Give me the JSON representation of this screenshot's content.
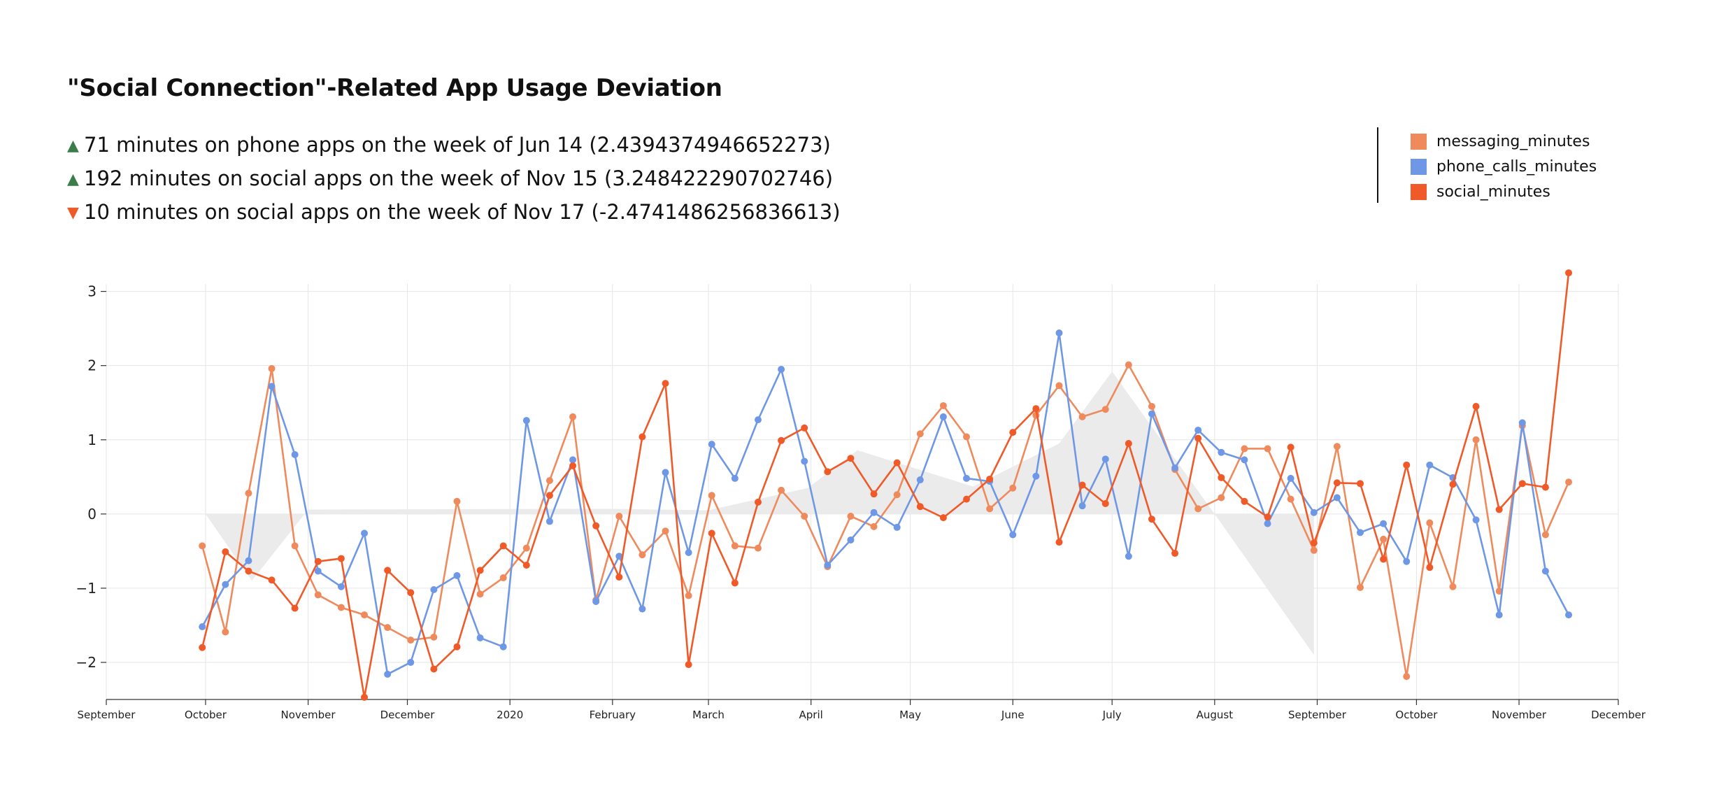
{
  "title": "\"Social Connection\"-Related App Usage Deviation",
  "annotations": [
    {
      "direction": "up",
      "color": "#3a7d4a",
      "text": "71 minutes on phone apps on the week of Jun 14 (2.4394374946652273)"
    },
    {
      "direction": "up",
      "color": "#3a7d4a",
      "text": "192 minutes on social apps on the week of Nov 15 (3.248422290702746)"
    },
    {
      "direction": "down",
      "color": "#f05a28",
      "text": "10 minutes on social apps on the week of Nov 17 (-2.4741486256836613)"
    }
  ],
  "chart_data": {
    "type": "line",
    "title": "\"Social Connection\"-Related App Usage Deviation",
    "xlabel": "",
    "ylabel": "",
    "ylim": [
      -2.5,
      3.1
    ],
    "yticks": [
      -2,
      -1,
      0,
      1,
      2,
      3
    ],
    "ytick_labels": [
      "−2",
      "−1",
      "0",
      "1",
      "2",
      "3"
    ],
    "xlim": [
      "2019-09-01",
      "2020-12-01"
    ],
    "xticks": [
      "2019-09-01",
      "2019-10-01",
      "2019-11-01",
      "2019-12-01",
      "2020-01-01",
      "2020-02-01",
      "2020-03-01",
      "2020-04-01",
      "2020-05-01",
      "2020-06-01",
      "2020-07-01",
      "2020-08-01",
      "2020-09-01",
      "2020-10-01",
      "2020-11-01",
      "2020-12-01"
    ],
    "xtick_labels": [
      "September",
      "October",
      "November",
      "December",
      "2020",
      "February",
      "March",
      "April",
      "May",
      "June",
      "July",
      "August",
      "September",
      "October",
      "November",
      "December"
    ],
    "grid": true,
    "legend_position": "top-right",
    "x": [
      "2019-09-30",
      "2019-10-07",
      "2019-10-14",
      "2019-10-21",
      "2019-10-28",
      "2019-11-04",
      "2019-11-11",
      "2019-11-18",
      "2019-11-25",
      "2019-12-02",
      "2019-12-09",
      "2019-12-16",
      "2019-12-23",
      "2019-12-30",
      "2020-01-06",
      "2020-01-13",
      "2020-01-20",
      "2020-01-27",
      "2020-02-03",
      "2020-02-10",
      "2020-02-17",
      "2020-02-24",
      "2020-03-02",
      "2020-03-09",
      "2020-03-16",
      "2020-03-23",
      "2020-03-30",
      "2020-04-06",
      "2020-04-13",
      "2020-04-20",
      "2020-04-27",
      "2020-05-04",
      "2020-05-11",
      "2020-05-18",
      "2020-05-25",
      "2020-06-01",
      "2020-06-08",
      "2020-06-15",
      "2020-06-22",
      "2020-06-29",
      "2020-07-06",
      "2020-07-13",
      "2020-07-20",
      "2020-07-27",
      "2020-08-03",
      "2020-08-10",
      "2020-08-17",
      "2020-08-24",
      "2020-08-31",
      "2020-09-07",
      "2020-09-14",
      "2020-09-21",
      "2020-09-28",
      "2020-10-05",
      "2020-10-12",
      "2020-10-19",
      "2020-10-26",
      "2020-11-02",
      "2020-11-09",
      "2020-11-16"
    ],
    "series": [
      {
        "name": "messaging_minutes",
        "color": "#ef8a5d",
        "values": [
          -0.43,
          -1.59,
          0.28,
          1.96,
          -0.43,
          -1.09,
          -1.26,
          -1.36,
          -1.53,
          -1.7,
          -1.66,
          0.17,
          -1.08,
          -0.86,
          -0.46,
          0.45,
          1.31,
          -1.16,
          -0.03,
          -0.55,
          -0.23,
          -1.1,
          0.25,
          -0.43,
          -0.46,
          0.32,
          -0.03,
          -0.71,
          -0.03,
          -0.17,
          0.26,
          1.08,
          1.46,
          1.04,
          0.07,
          0.35,
          1.33,
          1.73,
          1.31,
          1.41,
          2.01,
          1.45,
          0.6,
          0.07,
          0.22,
          0.88,
          0.88,
          0.2,
          -0.49,
          0.91,
          -0.99,
          -0.34,
          -2.19,
          -0.12,
          -0.98,
          1.0,
          -1.04,
          1.19,
          -0.28,
          0.43
        ]
      },
      {
        "name": "phone_calls_minutes",
        "color": "#6e98e6",
        "values": [
          -1.52,
          -0.95,
          -0.63,
          1.72,
          0.8,
          -0.77,
          -0.98,
          -0.26,
          -2.16,
          -2.0,
          -1.02,
          -0.83,
          -1.67,
          -1.79,
          1.26,
          -0.1,
          0.73,
          -1.18,
          -0.57,
          -1.28,
          0.56,
          -0.52,
          0.94,
          0.48,
          1.27,
          1.95,
          0.71,
          -0.69,
          -0.35,
          0.02,
          -0.18,
          0.46,
          1.31,
          0.48,
          0.44,
          -0.28,
          0.51,
          2.44,
          0.11,
          0.74,
          -0.57,
          1.35,
          0.62,
          1.13,
          0.83,
          0.73,
          -0.13,
          0.48,
          0.02,
          0.22,
          -0.25,
          -0.13,
          -0.64,
          0.66,
          0.49,
          -0.08,
          -1.36,
          1.23,
          -0.77,
          -1.36
        ]
      },
      {
        "name": "social_minutes",
        "color": "#f05a28",
        "values": [
          -1.8,
          -0.51,
          -0.77,
          -0.89,
          -1.27,
          -0.64,
          -0.6,
          -2.47,
          -0.76,
          -1.06,
          -2.09,
          -1.79,
          -0.76,
          -0.43,
          -0.69,
          0.25,
          0.65,
          -0.16,
          -0.85,
          1.04,
          1.76,
          -2.03,
          -0.26,
          -0.93,
          0.16,
          0.99,
          1.16,
          0.57,
          0.75,
          0.27,
          0.69,
          0.1,
          -0.05,
          0.2,
          0.47,
          1.1,
          1.42,
          -0.38,
          0.39,
          0.14,
          0.95,
          -0.07,
          -0.53,
          1.02,
          0.49,
          0.17,
          -0.04,
          0.9,
          -0.39,
          0.42,
          0.41,
          -0.61,
          0.66,
          -0.72,
          0.4,
          1.45,
          0.06,
          0.41,
          0.36,
          3.25
        ]
      }
    ],
    "band": {
      "color": "#ebebeb",
      "x": [
        "2019-10-01",
        "2019-10-15",
        "2019-11-01",
        "2020-01-30",
        "2020-03-01",
        "2020-03-31",
        "2020-04-15",
        "2020-05-20",
        "2020-06-15",
        "2020-07-01",
        "2020-08-01",
        "2020-08-31"
      ],
      "values": [
        0.0,
        -0.9,
        0.06,
        0.07,
        0.05,
        0.35,
        0.86,
        0.37,
        0.95,
        1.92,
        0.0,
        -1.9
      ]
    }
  },
  "legend": [
    {
      "label": "messaging_minutes",
      "color": "#ef8a5d"
    },
    {
      "label": "phone_calls_minutes",
      "color": "#6e98e6"
    },
    {
      "label": "social_minutes",
      "color": "#f05a28"
    }
  ]
}
